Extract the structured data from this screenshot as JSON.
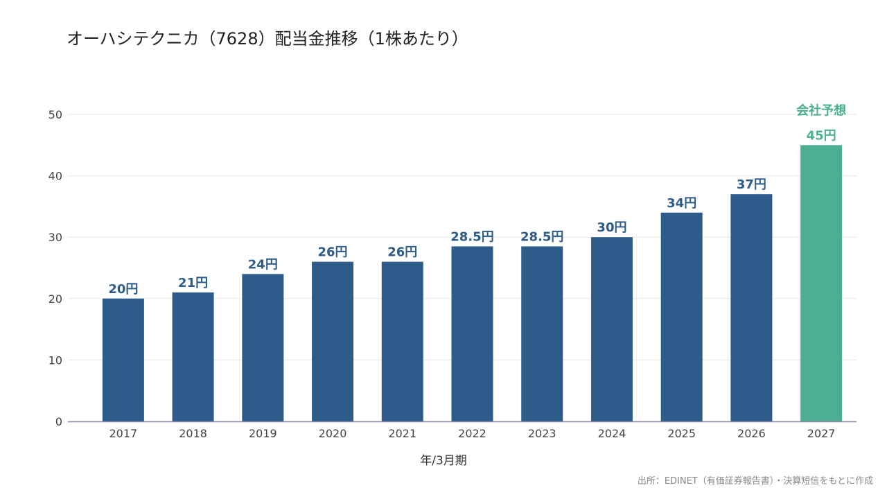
{
  "title": "オーハシテクニカ（7628）配当金推移（1株あたり）",
  "source": "出所：EDINET（有価証券報告書）・決算短信をもとに作成",
  "chart_data": {
    "type": "bar",
    "categories": [
      "2017",
      "2018",
      "2019",
      "2020",
      "2021",
      "2022",
      "2023",
      "2024",
      "2025",
      "2026",
      "2027"
    ],
    "values": [
      20,
      21,
      24,
      26,
      26,
      28.5,
      28.5,
      30,
      34,
      37,
      45
    ],
    "value_labels": [
      "20円",
      "21円",
      "24円",
      "26円",
      "26円",
      "28.5円",
      "28.5円",
      "30円",
      "34円",
      "37円",
      "45円"
    ],
    "forecast_index": 10,
    "forecast_label": "会社予想",
    "xlabel": "年/3月期",
    "ylabel": "",
    "ylim": [
      0,
      50
    ],
    "yticks": [
      0,
      10,
      20,
      30,
      40,
      50
    ],
    "grid": true,
    "colors": {
      "actual": "#2E5C8A",
      "forecast": "#4CAF92",
      "actual_label": "#2E5C8A",
      "forecast_label": "#4CAF92",
      "grid": "#e6e6e6",
      "axis": "#8888aa"
    }
  }
}
